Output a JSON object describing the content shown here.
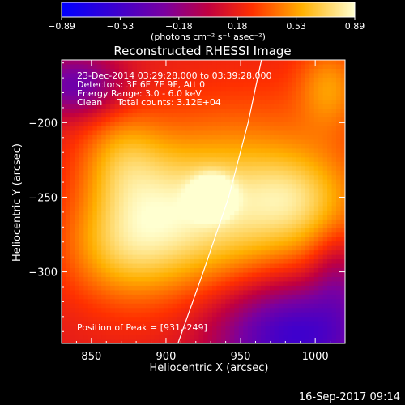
{
  "chart_data": {
    "type": "heatmap",
    "title": "Reconstructed RHESSI Image",
    "xlabel": "Heliocentric X (arcsec)",
    "ylabel": "Heliocentric Y (arcsec)",
    "xlim": [
      830,
      1020
    ],
    "ylim": [
      -348,
      -158
    ],
    "xticks": [
      850,
      900,
      950,
      1000
    ],
    "yticks": [
      -200,
      -250,
      -300
    ],
    "colorbar": {
      "unit_label": "(photons cm⁻² s⁻¹ asec⁻²)",
      "range": [
        -0.89,
        0.89
      ],
      "tick_labels": [
        "-0.89",
        "-0.53",
        "-0.18",
        "0.18",
        "0.53",
        "0.89"
      ]
    },
    "annotations": {
      "time": "23-Dec-2014 03:29:28.000 to 03:39:28.000",
      "detectors": "Detectors: 3F 6F 7F 9F, Att 0",
      "energy": "Energy Range: 3.0 - 6.0 keV",
      "clean": "Clean",
      "counts": "Total counts: 3.12E+04",
      "peak": "Position of Peak = [931,-249]"
    },
    "peak": {
      "x": 931,
      "y": -249
    },
    "limb_curve": [
      [
        908,
        -348
      ],
      [
        925,
        -300
      ],
      [
        942,
        -250
      ],
      [
        955,
        -200
      ],
      [
        964,
        -158
      ]
    ],
    "components": [
      {
        "x": 931,
        "y": -249,
        "amp": 0.55,
        "sx": 9,
        "sy": 9
      },
      {
        "x": 960,
        "y": -265,
        "amp": 0.45,
        "sx": 55,
        "sy": 55
      },
      {
        "x": 905,
        "y": -255,
        "amp": 0.35,
        "sx": 35,
        "sy": 30
      },
      {
        "x": 985,
        "y": -250,
        "amp": 0.25,
        "sx": 25,
        "sy": 20
      },
      {
        "x": 870,
        "y": -225,
        "amp": 0.3,
        "sx": 20,
        "sy": 25
      },
      {
        "x": 870,
        "y": -285,
        "amp": 0.35,
        "sx": 28,
        "sy": 25
      },
      {
        "x": 1010,
        "y": -175,
        "amp": 0.3,
        "sx": 15,
        "sy": 20
      },
      {
        "x": 985,
        "y": -340,
        "amp": -0.85,
        "sx": 40,
        "sy": 28
      },
      {
        "x": 840,
        "y": -175,
        "amp": -0.5,
        "sx": 22,
        "sy": 15
      },
      {
        "x": 1015,
        "y": -300,
        "amp": -0.25,
        "sx": 12,
        "sy": 20
      }
    ],
    "base_level": 0.15
  },
  "footer": {
    "date": "16-Sep-2017 09:14"
  }
}
